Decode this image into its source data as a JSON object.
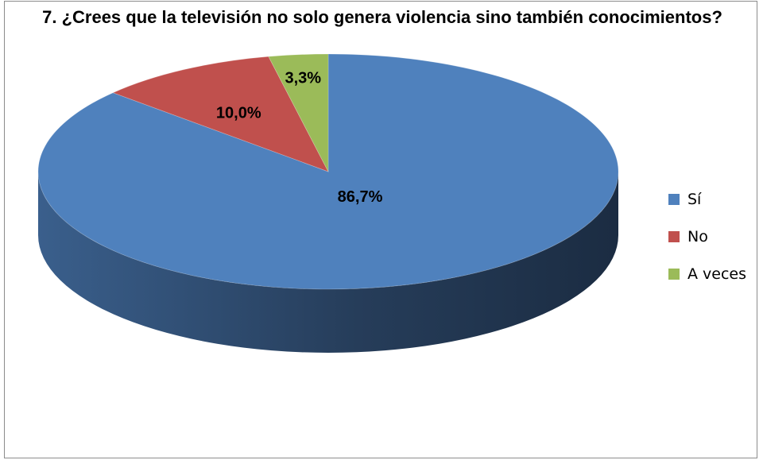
{
  "chart_data": {
    "type": "pie",
    "title": "7. ¿Crees que la televisión no solo genera violencia sino también conocimientos?",
    "categories": [
      "Sí",
      "No",
      "A veces"
    ],
    "values": [
      86.7,
      10.0,
      3.3
    ],
    "data_labels": [
      "86,7%",
      "10,0%",
      "3,3%"
    ],
    "colors": [
      "#4F81BD",
      "#C0504D",
      "#9BBB59"
    ],
    "legend_position": "right",
    "style": "3d"
  }
}
